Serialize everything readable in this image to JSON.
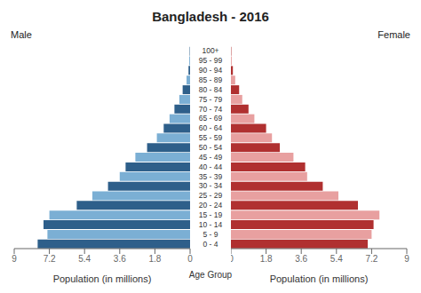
{
  "chart_data": {
    "type": "bar",
    "orientation": "horizontal",
    "title": "Bangladesh - 2016",
    "xlabel": "Population (in millions)",
    "ylabel": "Age Group",
    "categories": [
      "0 - 4",
      "5 - 9",
      "10 - 14",
      "15 - 19",
      "20 - 24",
      "25 - 29",
      "30 - 34",
      "35 - 39",
      "40 - 44",
      "45 - 49",
      "50 - 54",
      "55 - 59",
      "60 - 64",
      "65 - 69",
      "70 - 74",
      "75 - 79",
      "80 - 84",
      "85 - 89",
      "90 - 94",
      "95 - 99",
      "100+"
    ],
    "series": [
      {
        "name": "Male",
        "colors": [
          "#2e5f8a",
          "#7bafd4",
          "#2e5f8a",
          "#7bafd4",
          "#2e5f8a",
          "#7bafd4",
          "#2e5f8a",
          "#7bafd4",
          "#2e5f8a",
          "#7bafd4",
          "#2e5f8a",
          "#7bafd4",
          "#2e5f8a",
          "#7bafd4",
          "#2e5f8a",
          "#7bafd4",
          "#2e5f8a",
          "#7bafd4",
          "#2e5f8a",
          "#7bafd4",
          "#2e5f8a"
        ],
        "values": [
          7.8,
          7.3,
          7.5,
          7.2,
          5.8,
          5.0,
          4.2,
          3.6,
          3.3,
          2.8,
          2.2,
          1.7,
          1.35,
          1.05,
          0.8,
          0.55,
          0.38,
          0.18,
          0.08,
          0.04,
          0.02
        ]
      },
      {
        "name": "Female",
        "colors": [
          "#b03030",
          "#e8a0a0",
          "#b03030",
          "#e8a0a0",
          "#b03030",
          "#e8a0a0",
          "#b03030",
          "#e8a0a0",
          "#b03030",
          "#e8a0a0",
          "#b03030",
          "#e8a0a0",
          "#b03030",
          "#e8a0a0",
          "#b03030",
          "#e8a0a0",
          "#b03030",
          "#e8a0a0",
          "#b03030",
          "#e8a0a0",
          "#b03030"
        ],
        "values": [
          7.0,
          7.2,
          7.3,
          7.6,
          6.5,
          5.5,
          4.7,
          3.9,
          3.8,
          3.2,
          2.5,
          2.1,
          1.8,
          1.2,
          0.9,
          0.58,
          0.42,
          0.22,
          0.1,
          0.04,
          0.02
        ]
      }
    ],
    "xlim": [
      0,
      9
    ],
    "xticks": [
      0,
      1.8,
      3.6,
      5.4,
      7.2,
      9
    ]
  }
}
